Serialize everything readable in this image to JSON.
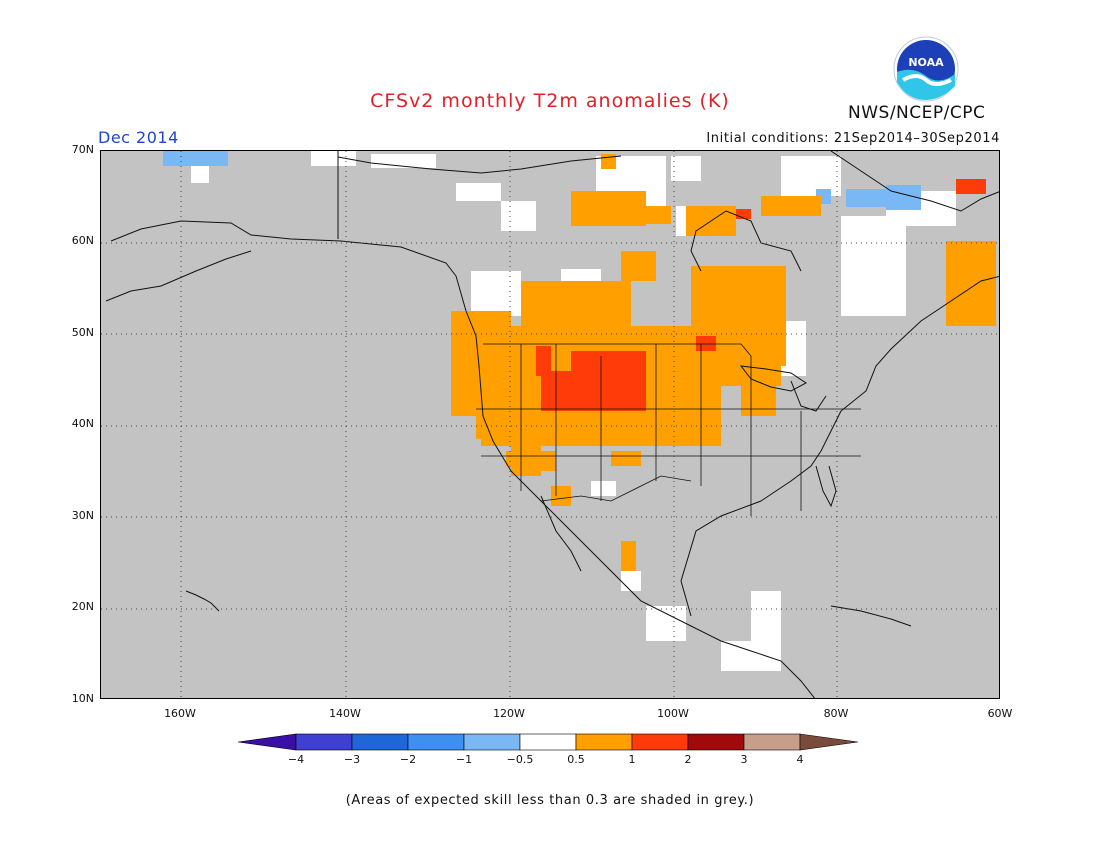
{
  "header": {
    "title": "CFSv2 monthly T2m anomalies (K)",
    "org": "NWS/NCEP/CPC",
    "month": "Dec 2014",
    "initial_conditions": "Initial conditions: 21Sep2014–30Sep2014",
    "logo_text": "NOAA"
  },
  "axes": {
    "lat_labels": [
      "70N",
      "60N",
      "50N",
      "40N",
      "30N",
      "20N",
      "10N"
    ],
    "lon_labels": [
      "160W",
      "140W",
      "120W",
      "100W",
      "80W",
      "60W"
    ]
  },
  "legend": {
    "labels": [
      "−4",
      "−3",
      "−2",
      "−1",
      "−0.5",
      "0.5",
      "1",
      "2",
      "3",
      "4"
    ],
    "colors": [
      "#3a0fa8",
      "#3f3fd0",
      "#1f66d6",
      "#3d8ff0",
      "#7ab8f5",
      "#ffffff",
      "#ffa000",
      "#ff3b0a",
      "#a00a0a",
      "#c79e8a",
      "#7a4a3a"
    ]
  },
  "map_colors": {
    "mask_grey": "#c3c3c3",
    "near_normal": "#ffffff",
    "warm_1": "#ffa000",
    "warm_2": "#ff3b0a",
    "cool_1": "#7ab8f5"
  },
  "footnote": "(Areas of expected skill less than 0.3 are shaded in grey.)"
}
